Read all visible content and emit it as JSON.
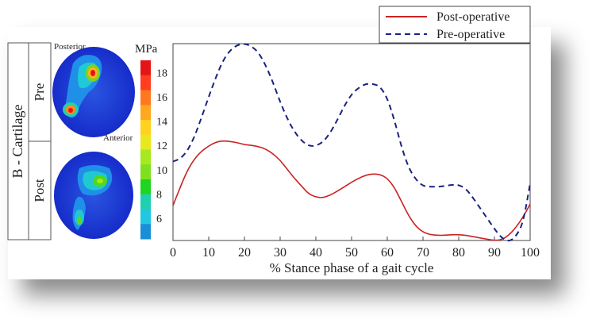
{
  "panel": {
    "row_group_label": "B - Cartilage",
    "row_labels": [
      "Pre",
      "Post"
    ],
    "map_labels": {
      "top": "Posterior",
      "bottom": "Anterior"
    }
  },
  "colorbar": {
    "unit": "MPa",
    "ticks": [
      "18",
      "16",
      "14",
      "12",
      "10",
      "8",
      "6"
    ],
    "tick_values": [
      18,
      16,
      14,
      12,
      10,
      8,
      6
    ],
    "range": [
      4.3,
      19
    ],
    "colors": [
      "#1a8fd6",
      "#22c8e0",
      "#1fd0b0",
      "#1fd51f",
      "#7ee01f",
      "#a8e81f",
      "#e8e81f",
      "#ffd21f",
      "#ffa81f",
      "#ff781f",
      "#ff3d1f",
      "#e51515"
    ]
  },
  "chart_data": {
    "type": "line",
    "title": "",
    "xlabel": "% Stance phase of a gait cycle",
    "ylabel": "",
    "xlim": [
      0,
      100
    ],
    "ylim": [
      4.3,
      19.5
    ],
    "xticks": [
      0,
      10,
      20,
      30,
      40,
      50,
      60,
      70,
      80,
      90,
      100
    ],
    "legend_position": "top-right",
    "series": [
      {
        "name": "Post-operative",
        "color": "#cc2222",
        "dash": "solid",
        "x": [
          0,
          2,
          4,
          6,
          8,
          10,
          12,
          14,
          16,
          18,
          20,
          22,
          24,
          26,
          28,
          30,
          32,
          34,
          36,
          38,
          40,
          42,
          44,
          46,
          48,
          50,
          52,
          54,
          56,
          58,
          60,
          62,
          64,
          66,
          68,
          70,
          72,
          74,
          76,
          78,
          80,
          82,
          84,
          86,
          88,
          90,
          92,
          94,
          96,
          98,
          100
        ],
        "y": [
          7.0,
          8.4,
          9.7,
          10.6,
          11.2,
          11.6,
          11.9,
          12.0,
          11.95,
          11.85,
          11.7,
          11.65,
          11.55,
          11.35,
          11.0,
          10.5,
          9.8,
          9.1,
          8.5,
          7.9,
          7.65,
          7.6,
          7.8,
          8.1,
          8.45,
          8.8,
          9.1,
          9.35,
          9.45,
          9.4,
          9.1,
          8.4,
          7.3,
          6.2,
          5.4,
          4.95,
          4.75,
          4.7,
          4.7,
          4.75,
          4.75,
          4.7,
          4.6,
          4.5,
          4.4,
          4.3,
          4.35,
          4.7,
          5.3,
          6.1,
          7.1
        ]
      },
      {
        "name": "Pre-operative",
        "color": "#1a237e",
        "dash": "dashed",
        "x": [
          0,
          2,
          4,
          6,
          8,
          10,
          12,
          14,
          16,
          18,
          20,
          22,
          24,
          26,
          28,
          30,
          32,
          34,
          36,
          38,
          40,
          42,
          44,
          46,
          48,
          50,
          52,
          54,
          56,
          58,
          60,
          62,
          64,
          66,
          68,
          70,
          72,
          74,
          76,
          78,
          80,
          82,
          84,
          86,
          88,
          90,
          92,
          94,
          96,
          98,
          100
        ],
        "y": [
          10.4,
          10.6,
          11.2,
          12.3,
          13.8,
          15.4,
          16.9,
          18.2,
          19.0,
          19.4,
          19.5,
          19.3,
          18.8,
          17.8,
          16.5,
          15.0,
          13.7,
          12.7,
          12.0,
          11.6,
          11.6,
          11.9,
          12.6,
          13.6,
          14.7,
          15.6,
          16.1,
          16.4,
          16.4,
          16.2,
          15.3,
          13.6,
          11.5,
          9.9,
          9.0,
          8.5,
          8.45,
          8.45,
          8.5,
          8.6,
          8.6,
          8.3,
          7.6,
          6.8,
          6.0,
          5.2,
          4.5,
          4.2,
          4.6,
          5.6,
          8.7
        ]
      }
    ]
  }
}
